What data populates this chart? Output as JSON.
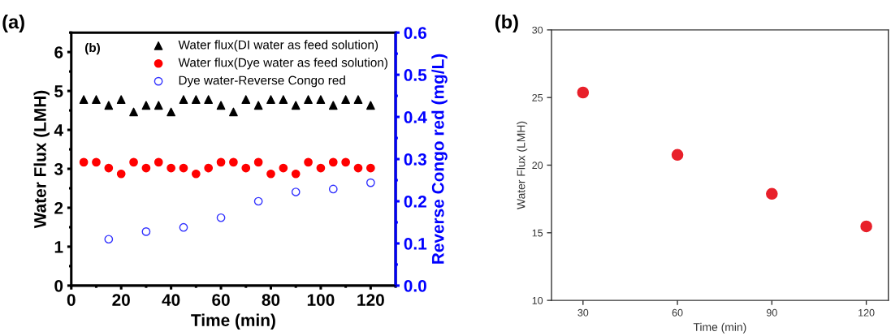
{
  "chart_data": [
    {
      "type": "scatter",
      "xlabel": "Time (min)",
      "ylabel": "Water Flux (LMH)",
      "y2label": "Reverse Congo red (mg/L)",
      "annotations": [
        "(a)",
        "(b)"
      ],
      "x": [
        5,
        10,
        15,
        20,
        25,
        30,
        35,
        40,
        45,
        50,
        55,
        60,
        65,
        70,
        75,
        80,
        85,
        90,
        95,
        100,
        105,
        110,
        115,
        120
      ],
      "xlim": [
        0,
        130
      ],
      "xticks": [
        0,
        20,
        40,
        60,
        80,
        100,
        120
      ],
      "ylim": [
        0,
        6.5
      ],
      "yticks": [
        0,
        1,
        2,
        3,
        4,
        5,
        6
      ],
      "y2lim": [
        0,
        0.6
      ],
      "y2ticks": [
        {
          "value": 0,
          "label": "0.0"
        },
        0.1,
        0.2,
        0.3,
        0.4,
        0.5,
        0.6
      ],
      "legend": "top right",
      "grid": false,
      "series": [
        {
          "name": "Water flux(DI water as feed solution)",
          "color": "#000000",
          "marker": "triangle",
          "values": [
            4.78,
            4.78,
            4.63,
            4.78,
            4.46,
            4.63,
            4.63,
            4.46,
            4.78,
            4.78,
            4.78,
            4.63,
            4.46,
            4.78,
            4.63,
            4.78,
            4.78,
            4.63,
            4.78,
            4.78,
            4.63,
            4.78,
            4.78,
            4.63
          ]
        },
        {
          "name": "Water flux(Dye water as feed solution)",
          "color": "#ff0000",
          "marker": "circle",
          "values": [
            3.17,
            3.17,
            3.02,
            2.87,
            3.17,
            3.02,
            3.17,
            3.02,
            3.02,
            2.87,
            3.02,
            3.17,
            3.17,
            3.02,
            3.17,
            2.87,
            3.02,
            2.87,
            3.17,
            3.02,
            3.17,
            3.17,
            3.02,
            3.02
          ]
        },
        {
          "name": "Dye water-Reverse Congo red",
          "color": "#3333ff",
          "marker": "circle",
          "axis": "y2",
          "x": [
            15,
            30,
            45,
            60,
            75,
            90,
            105,
            120
          ],
          "values": [
            0.11,
            0.128,
            0.138,
            0.161,
            0.2,
            0.222,
            0.229,
            0.244
          ]
        }
      ]
    },
    {
      "type": "scatter",
      "xlabel": "Time (min)",
      "ylabel": "Water Flux (LMH)",
      "annotations": [
        "(b)"
      ],
      "x": [
        30,
        60,
        90,
        120
      ],
      "xlim": [
        20,
        127
      ],
      "xticks": [
        30,
        60,
        90,
        120
      ],
      "ylim": [
        10,
        30
      ],
      "yticks": [
        10,
        15,
        20,
        25,
        30
      ],
      "grid": false,
      "series": [
        {
          "color": "#e8202a",
          "marker": "circle",
          "values": [
            25.37,
            20.76,
            17.88,
            15.47
          ]
        }
      ]
    }
  ]
}
